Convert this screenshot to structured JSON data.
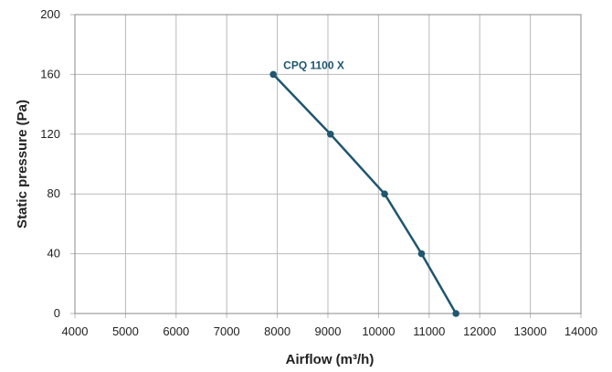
{
  "chart_data": {
    "type": "line",
    "title": "",
    "xlabel": "Airflow (m³/h)",
    "ylabel": "Static pressure (Pa)",
    "xlim": [
      4000,
      14000
    ],
    "ylim": [
      0,
      200
    ],
    "x_ticks": [
      "4000",
      "5000",
      "6000",
      "7000",
      "8000",
      "9000",
      "10000",
      "11000",
      "12000",
      "13000",
      "14000"
    ],
    "y_ticks": [
      "0",
      "40",
      "80",
      "120",
      "160",
      "200"
    ],
    "grid": true,
    "legend": "none",
    "series": [
      {
        "name": "CPQ 1100 X",
        "color": "#1f5670",
        "x": [
          7920,
          9050,
          10120,
          10850,
          11530
        ],
        "y": [
          160,
          120,
          80,
          40,
          0
        ]
      }
    ]
  }
}
